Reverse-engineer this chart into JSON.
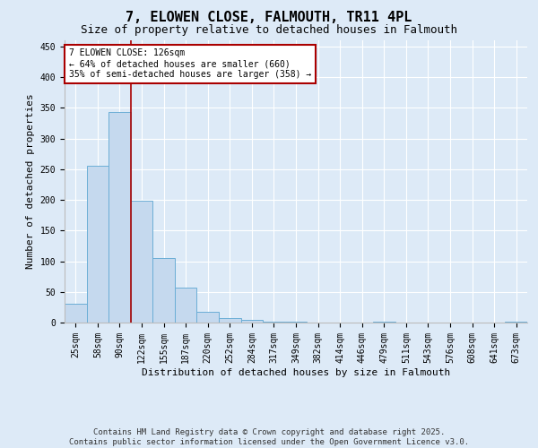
{
  "title": "7, ELOWEN CLOSE, FALMOUTH, TR11 4PL",
  "subtitle": "Size of property relative to detached houses in Falmouth",
  "xlabel": "Distribution of detached houses by size in Falmouth",
  "ylabel": "Number of detached properties",
  "categories": [
    "25sqm",
    "58sqm",
    "90sqm",
    "122sqm",
    "155sqm",
    "187sqm",
    "220sqm",
    "252sqm",
    "284sqm",
    "317sqm",
    "349sqm",
    "382sqm",
    "414sqm",
    "446sqm",
    "479sqm",
    "511sqm",
    "543sqm",
    "576sqm",
    "608sqm",
    "641sqm",
    "673sqm"
  ],
  "values": [
    30,
    255,
    343,
    198,
    105,
    57,
    18,
    8,
    4,
    2,
    1,
    0,
    0,
    0,
    1,
    0,
    0,
    0,
    0,
    0,
    1
  ],
  "bar_color": "#c5d9ee",
  "bar_edge_color": "#6baed6",
  "vline_x_index": 2.5,
  "vline_color": "#aa0000",
  "annotation_text": "7 ELOWEN CLOSE: 126sqm\n← 64% of detached houses are smaller (660)\n35% of semi-detached houses are larger (358) →",
  "annotation_box_facecolor": "#ffffff",
  "annotation_box_edgecolor": "#aa0000",
  "ylim": [
    0,
    460
  ],
  "yticks": [
    0,
    50,
    100,
    150,
    200,
    250,
    300,
    350,
    400,
    450
  ],
  "background_color": "#ddeaf7",
  "plot_bg_color": "#ddeaf7",
  "footer_text": "Contains HM Land Registry data © Crown copyright and database right 2025.\nContains public sector information licensed under the Open Government Licence v3.0.",
  "title_fontsize": 11,
  "subtitle_fontsize": 9,
  "axis_label_fontsize": 8,
  "tick_fontsize": 7,
  "annotation_fontsize": 7,
  "footer_fontsize": 6.5
}
